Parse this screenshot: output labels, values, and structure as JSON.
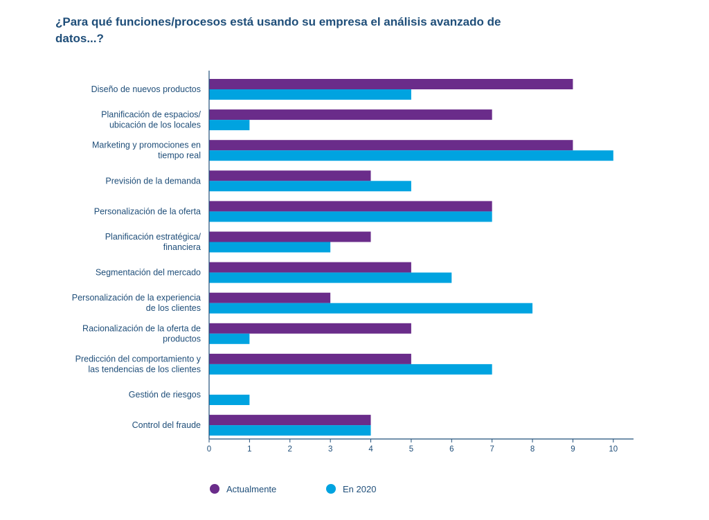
{
  "chart_data": {
    "type": "bar",
    "orientation": "horizontal",
    "title": "¿Para qué funciones/procesos está usando su empresa el análisis avanzado de datos...?",
    "categories": [
      "Diseño de nuevos productos",
      "Planificación de espacios/ ubicación de los locales",
      "Marketing y promociones en tiempo real",
      "Previsión de la demanda",
      "Personalización de la oferta",
      "Planificación estratégica/ financiera",
      "Segmentación del mercado",
      "Personalización de la experiencia de los clientes",
      "Racionalización de la oferta de productos",
      "Predicción del comportamiento y las tendencias de los clientes",
      "Gestión de riesgos",
      "Control del fraude"
    ],
    "category_lines": [
      [
        "Diseño de nuevos productos"
      ],
      [
        "Planificación de espacios/",
        "ubicación de los locales"
      ],
      [
        "Marketing y promociones en",
        "tiempo real"
      ],
      [
        "Previsión de la demanda"
      ],
      [
        "Personalización de la oferta"
      ],
      [
        "Planificación estratégica/",
        "financiera"
      ],
      [
        "Segmentación del mercado"
      ],
      [
        "Personalización de la experiencia",
        "de los clientes"
      ],
      [
        "Racionalización de la oferta de",
        "productos"
      ],
      [
        "Predicción del comportamiento y",
        "las tendencias de los clientes"
      ],
      [
        "Gestión de riesgos"
      ],
      [
        "Control del fraude"
      ]
    ],
    "series": [
      {
        "name": "Actualmente",
        "color": "#6a2c8a",
        "values": [
          9,
          7,
          9,
          4,
          7,
          4,
          5,
          3,
          5,
          5,
          0,
          4
        ]
      },
      {
        "name": "En 2020",
        "color": "#00a3e0",
        "values": [
          5,
          1,
          10,
          5,
          7,
          3,
          6,
          8,
          1,
          7,
          1,
          4
        ]
      }
    ],
    "xlim": [
      0,
      10.5
    ],
    "xticks": [
      0,
      1,
      2,
      3,
      4,
      5,
      6,
      7,
      8,
      9,
      10
    ],
    "grid": false,
    "legend_position": "bottom-left",
    "axis_color": "#1f4e79"
  }
}
